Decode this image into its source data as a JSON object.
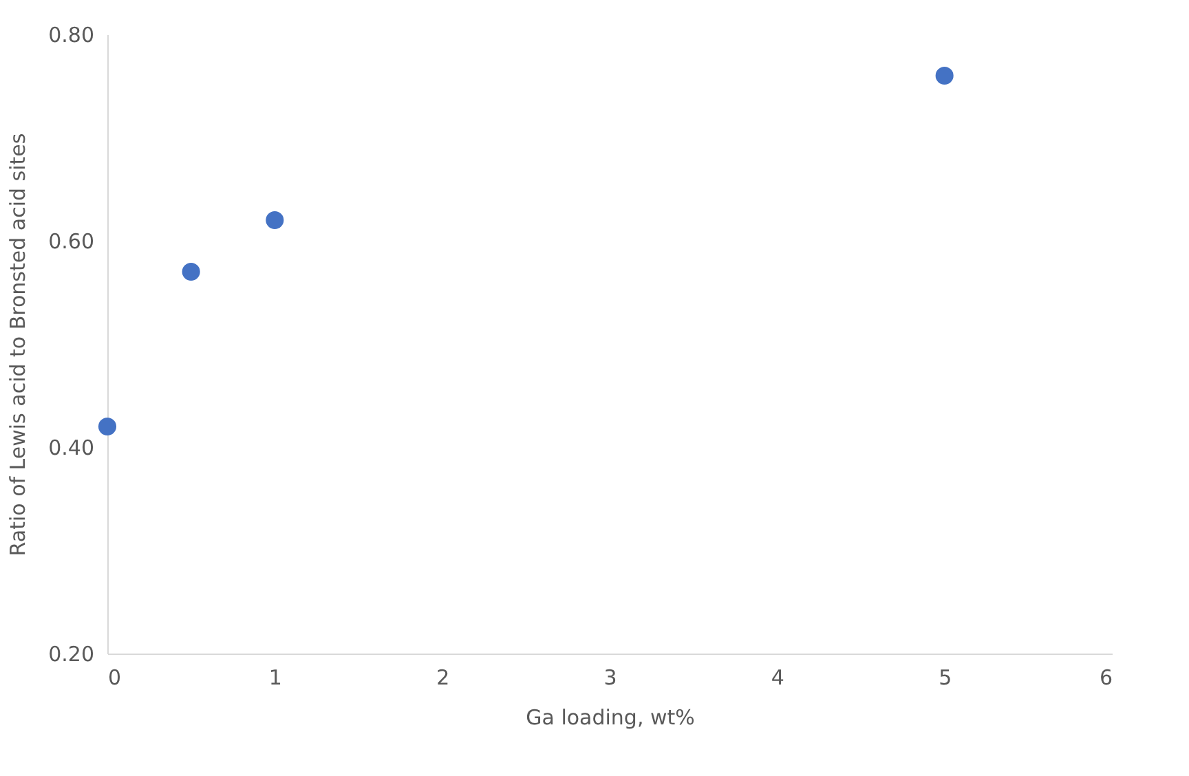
{
  "chart_data": {
    "type": "scatter",
    "xlabel": "Ga loading, wt%",
    "ylabel": "Ratio of Lewis acid to Bronsted acid sites",
    "x": [
      0,
      0.5,
      1,
      5
    ],
    "series": [
      {
        "color": "#4472c4",
        "values": [
          0.42,
          0.57,
          0.62,
          0.76
        ]
      }
    ],
    "xlim": [
      0,
      6
    ],
    "xticks": [
      0,
      1,
      2,
      3,
      4,
      5,
      6
    ],
    "ylim": [
      0.2,
      0.8
    ],
    "yticks": [
      {
        "value": 0.2,
        "label": "0.20"
      },
      {
        "value": 0.4,
        "label": "0.40"
      },
      {
        "value": 0.6,
        "label": "0.60"
      },
      {
        "value": 0.8,
        "label": "0.80"
      }
    ],
    "grid": false,
    "marker": "circle"
  }
}
